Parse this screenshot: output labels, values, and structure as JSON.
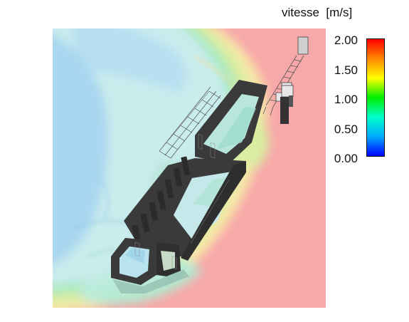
{
  "legend": {
    "title": "vitesse  [m/s]",
    "ticks": [
      "2.00",
      "1.50",
      "1.00",
      "0.50",
      "0.00"
    ],
    "range": [
      0.0,
      2.0
    ],
    "colormap": [
      "#0000ff",
      "#00aaff",
      "#00ffcc",
      "#00ee00",
      "#ffff00",
      "#ff8800",
      "#ff0000"
    ]
  },
  "field_colors": {
    "low": "#a9d6f0",
    "calm": "#c9ecec",
    "mid": "#a6e8c0",
    "rise": "#d9eda0",
    "high": "#f8e8a8",
    "fast": "#f7a9a9"
  },
  "building_color": "#3a3a3a"
}
